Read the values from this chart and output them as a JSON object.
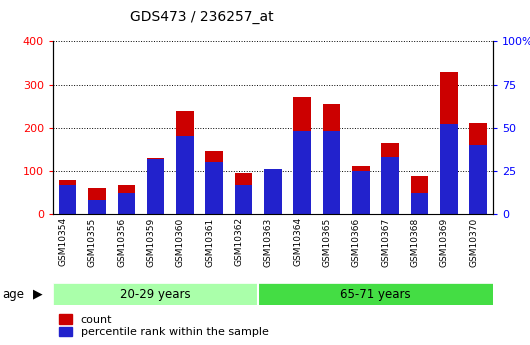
{
  "title": "GDS473 / 236257_at",
  "categories": [
    "GSM10354",
    "GSM10355",
    "GSM10356",
    "GSM10359",
    "GSM10360",
    "GSM10361",
    "GSM10362",
    "GSM10363",
    "GSM10364",
    "GSM10365",
    "GSM10366",
    "GSM10367",
    "GSM10368",
    "GSM10369",
    "GSM10370"
  ],
  "count_values": [
    78,
    60,
    68,
    130,
    238,
    147,
    95,
    102,
    270,
    255,
    110,
    165,
    88,
    328,
    210
  ],
  "percentile_values": [
    17,
    8,
    12,
    32,
    45,
    30,
    17,
    26,
    48,
    48,
    25,
    33,
    12,
    52,
    40
  ],
  "group1_label": "20-29 years",
  "group2_label": "65-71 years",
  "group1_count": 7,
  "group2_count": 8,
  "bar_color_red": "#cc0000",
  "bar_color_blue": "#2222cc",
  "group1_bg": "#aaffaa",
  "group2_bg": "#44dd44",
  "xtick_bg": "#cccccc",
  "plot_bg": "#ffffff",
  "ylim_left": [
    0,
    400
  ],
  "ylim_right": [
    0,
    100
  ],
  "left_ticks": [
    0,
    100,
    200,
    300,
    400
  ],
  "right_ticks": [
    0,
    25,
    50,
    75,
    100
  ],
  "title_fontsize": 10,
  "age_label": "age"
}
